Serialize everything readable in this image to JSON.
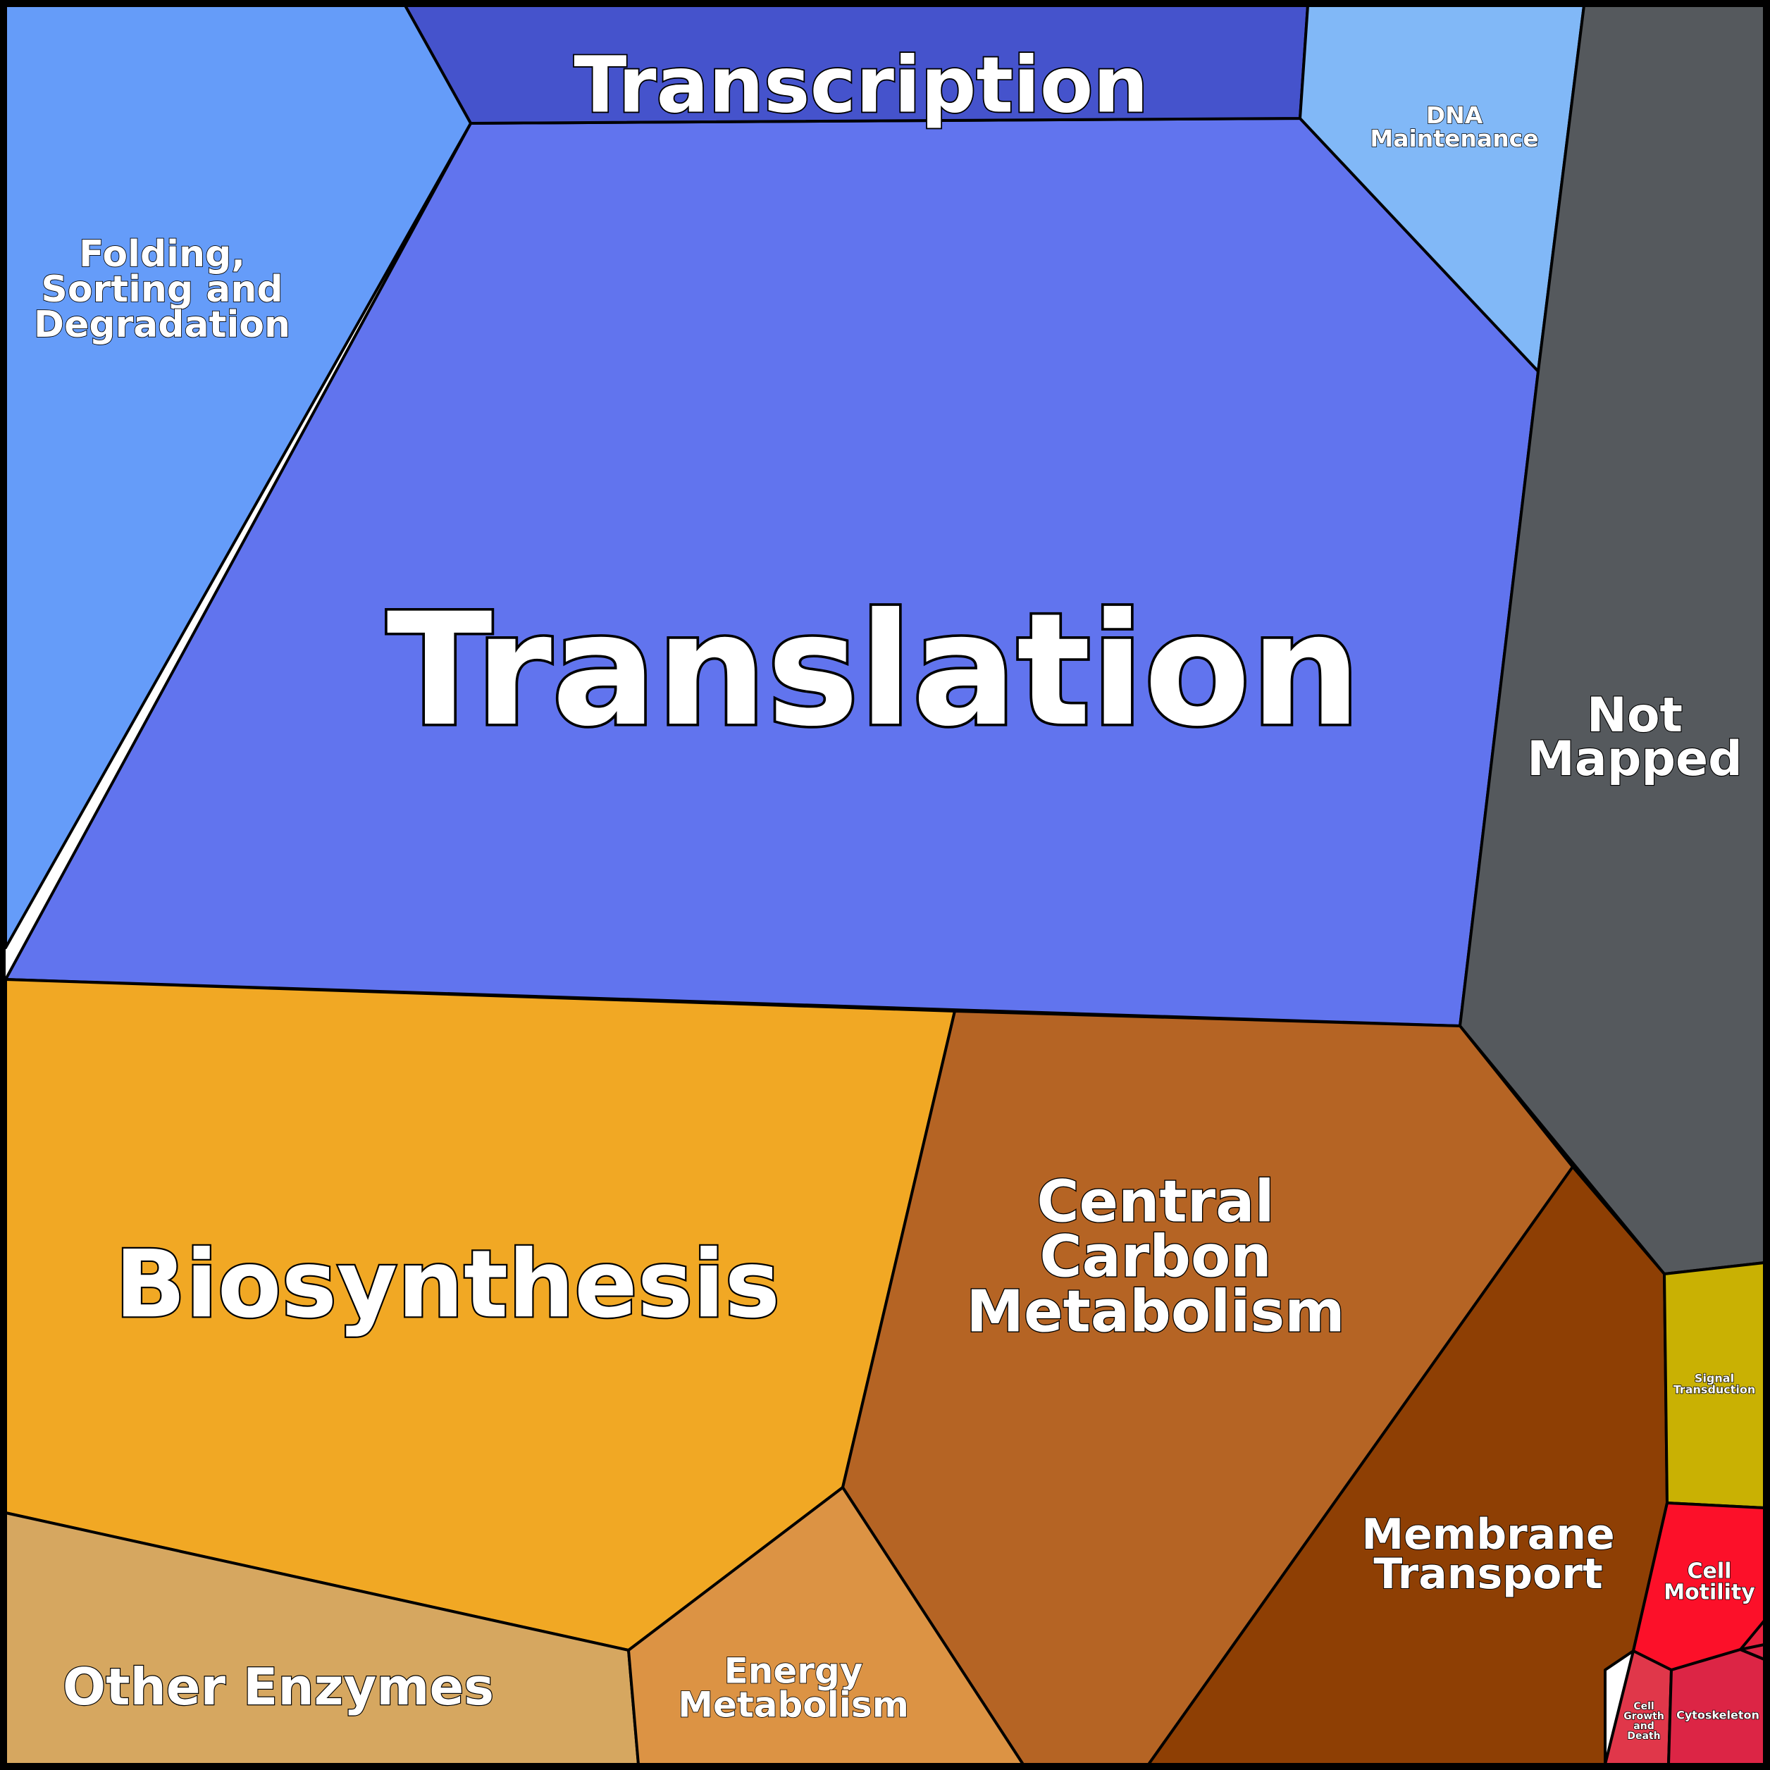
{
  "regions": [
    {
      "id": "translation",
      "label": [
        "Translation"
      ],
      "color": "#6174ee"
    },
    {
      "id": "transcription",
      "label": [
        "Transcription"
      ],
      "color": "#4553cc"
    },
    {
      "id": "folding-sorting-degradation",
      "label": [
        "Folding,",
        "Sorting and",
        "Degradation"
      ],
      "color": "#659cf9"
    },
    {
      "id": "dna-maintenance",
      "label": [
        "DNA",
        "Maintenance"
      ],
      "color": "#81b8f7"
    },
    {
      "id": "not-mapped",
      "label": [
        "Not",
        "Mapped"
      ],
      "color": "#55595d"
    },
    {
      "id": "biosynthesis",
      "label": [
        "Biosynthesis"
      ],
      "color": "#f1a824"
    },
    {
      "id": "central-carbon-metabolism",
      "label": [
        "Central",
        "Carbon",
        "Metabolism"
      ],
      "color": "#b56424"
    },
    {
      "id": "membrane-transport",
      "label": [
        "Membrane",
        "Transport"
      ],
      "color": "#8e3f04"
    },
    {
      "id": "other-enzymes",
      "label": [
        "Other Enzymes"
      ],
      "color": "#d6a760"
    },
    {
      "id": "energy-metabolism",
      "label": [
        "Energy",
        "Metabolism"
      ],
      "color": "#dc9344"
    },
    {
      "id": "signal-transduction",
      "label": [
        "Signal",
        "Transduction"
      ],
      "color": "#c9b103"
    },
    {
      "id": "cell-motility",
      "label": [
        "Cell",
        "Motility"
      ],
      "color": "#fc1029"
    },
    {
      "id": "cell-growth-and-death",
      "label": [
        "Cell",
        "Growth",
        "and",
        "Death"
      ],
      "color": "#e0374a"
    },
    {
      "id": "cytoskeleton",
      "label": [
        "Cytoskeleton"
      ],
      "color": "#dc2545"
    },
    {
      "id": "unlabeled-small-1",
      "label": [],
      "color": "#dc2545"
    },
    {
      "id": "unlabeled-small-2",
      "label": [],
      "color": "#e8213d"
    }
  ]
}
